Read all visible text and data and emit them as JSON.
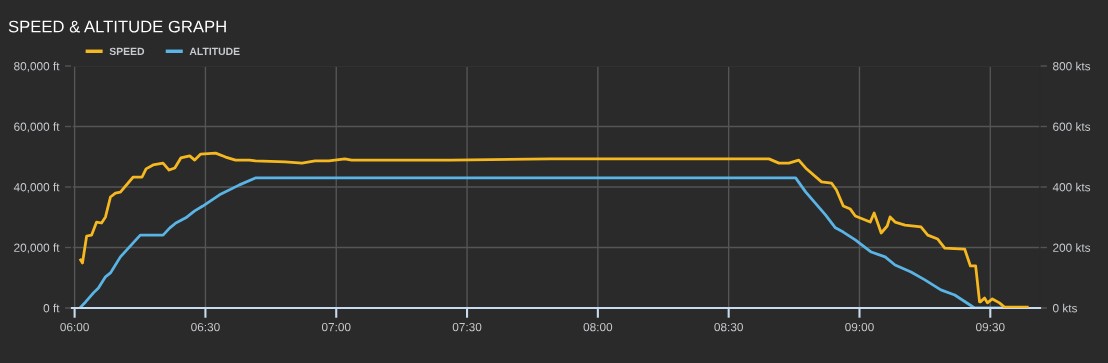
{
  "chart_data": {
    "type": "line",
    "title": "SPEED & ALTITUDE GRAPH",
    "legend": "top left",
    "grid": true,
    "line_style": "solid",
    "marker": "none",
    "xlim": [
      5.99,
      9.69
    ],
    "xticks": [
      {
        "value": 6,
        "label": "06:00"
      },
      {
        "value": 6.5,
        "label": "06:30"
      },
      {
        "value": 7,
        "label": "07:00"
      },
      {
        "value": 7.5,
        "label": "07:30"
      },
      {
        "value": 8,
        "label": "08:00"
      },
      {
        "value": 8.5,
        "label": "08:30"
      },
      {
        "value": 9,
        "label": "09:00"
      },
      {
        "value": 9.5,
        "label": "09:30"
      }
    ],
    "ylim": [
      0,
      80000
    ],
    "yticks": [
      {
        "value": 0,
        "label": "0 ft"
      },
      {
        "value": 20000,
        "label": "20,000 ft"
      },
      {
        "value": 40000,
        "label": "40,000 ft"
      },
      {
        "value": 60000,
        "label": "60,000 ft"
      },
      {
        "value": 80000,
        "label": "80,000 ft"
      }
    ],
    "y2lim": [
      0,
      800
    ],
    "y2ticks": [
      {
        "value": 0,
        "label": "0 kts"
      },
      {
        "value": 200,
        "label": "200 kts"
      },
      {
        "value": 400,
        "label": "400 kts"
      },
      {
        "value": 600,
        "label": "600 kts"
      },
      {
        "value": 800,
        "label": "800 kts"
      }
    ],
    "series": [
      {
        "name": "SPEED",
        "color": "#f5b820",
        "axis": "y2",
        "x": [
          6.023,
          6.03,
          6.046,
          6.065,
          6.084,
          6.103,
          6.118,
          6.137,
          6.156,
          6.175,
          6.224,
          6.258,
          6.273,
          6.3,
          6.338,
          6.361,
          6.383,
          6.406,
          6.44,
          6.459,
          6.482,
          6.539,
          6.577,
          6.615,
          6.668,
          6.691,
          6.805,
          6.869,
          6.919,
          6.972,
          7.033,
          7.059,
          7.439,
          7.819,
          8.198,
          8.654,
          8.692,
          8.73,
          8.768,
          8.794,
          8.855,
          8.893,
          8.912,
          8.938,
          8.965,
          8.984,
          9.022,
          9.041,
          9.056,
          9.071,
          9.083,
          9.106,
          9.117,
          9.136,
          9.174,
          9.235,
          9.261,
          9.299,
          9.326,
          9.402,
          9.424,
          9.444,
          9.459,
          9.462,
          9.478,
          9.489,
          9.508,
          9.535,
          9.554,
          9.641
        ],
        "values": [
          159,
          149,
          238,
          241,
          284,
          281,
          301,
          367,
          380,
          383,
          433,
          433,
          460,
          473,
          479,
          456,
          463,
          496,
          503,
          489,
          509,
          512,
          499,
          489,
          489,
          486,
          483,
          479,
          486,
          486,
          493,
          489,
          489,
          493,
          493,
          493,
          479,
          479,
          489,
          463,
          417,
          413,
          390,
          337,
          327,
          304,
          291,
          284,
          314,
          278,
          248,
          271,
          301,
          284,
          274,
          268,
          241,
          228,
          198,
          195,
          139,
          139,
          20,
          20,
          33,
          17,
          30,
          17,
          3,
          3
        ]
      },
      {
        "name": "ALTITUDE",
        "color": "#5ab4e5",
        "axis": "y",
        "x": [
          6.023,
          6.042,
          6.072,
          6.091,
          6.118,
          6.137,
          6.175,
          6.216,
          6.251,
          6.338,
          6.364,
          6.387,
          6.425,
          6.459,
          6.49,
          6.554,
          6.63,
          6.691,
          8.756,
          8.794,
          8.87,
          8.908,
          8.938,
          8.984,
          9.045,
          9.098,
          9.136,
          9.197,
          9.25,
          9.311,
          9.364,
          9.44,
          9.641
        ],
        "values": [
          300,
          2000,
          5000,
          6600,
          10300,
          11600,
          16900,
          20800,
          24100,
          24100,
          26500,
          28100,
          29800,
          32100,
          33700,
          37400,
          40700,
          43000,
          43000,
          38400,
          30800,
          26500,
          25100,
          22500,
          18500,
          16900,
          14200,
          11900,
          9300,
          6000,
          4300,
          0,
          0
        ]
      }
    ]
  }
}
